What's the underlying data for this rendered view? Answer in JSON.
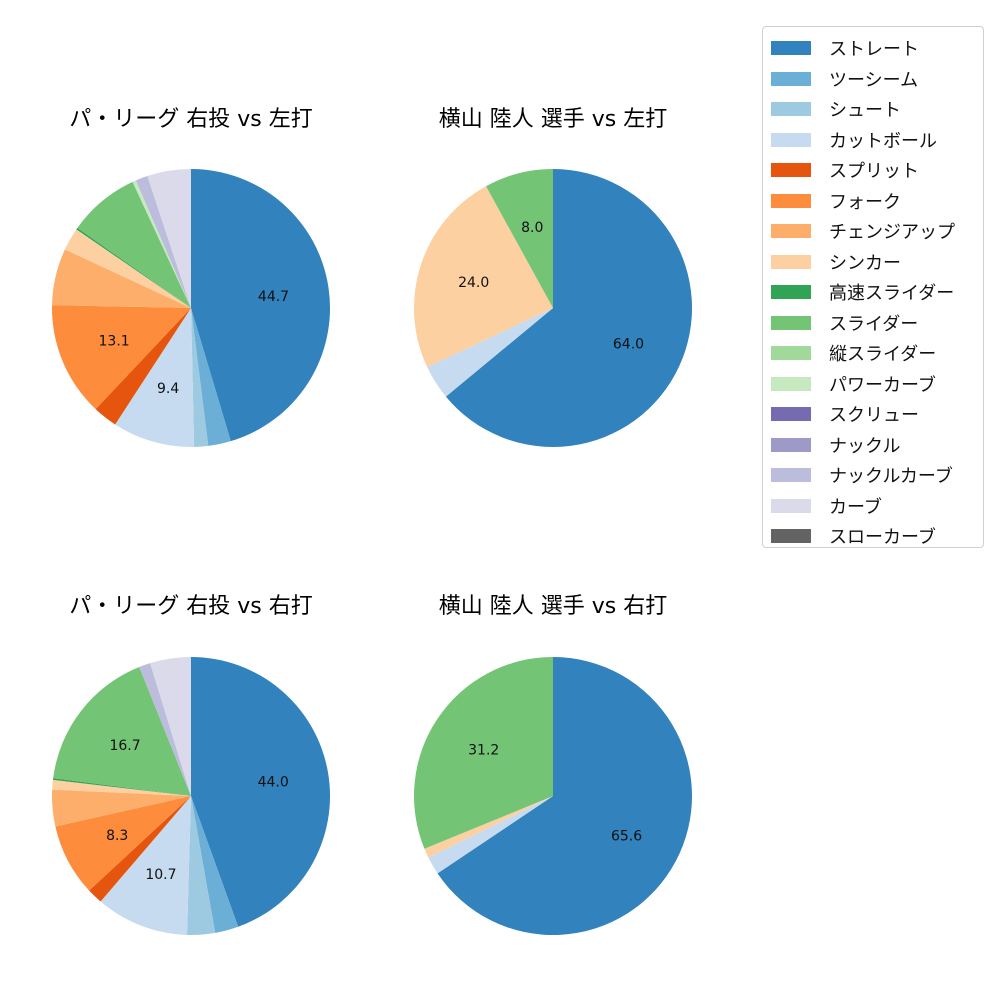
{
  "legend": {
    "items": [
      {
        "label": "ストレート",
        "color": "#3182bd"
      },
      {
        "label": "ツーシーム",
        "color": "#6baed6"
      },
      {
        "label": "シュート",
        "color": "#9ecae1"
      },
      {
        "label": "カットボール",
        "color": "#c6dbef"
      },
      {
        "label": "スプリット",
        "color": "#e6550d"
      },
      {
        "label": "フォーク",
        "color": "#fd8d3c"
      },
      {
        "label": "チェンジアップ",
        "color": "#fdae6b"
      },
      {
        "label": "シンカー",
        "color": "#fdd0a2"
      },
      {
        "label": "高速スライダー",
        "color": "#31a354"
      },
      {
        "label": "スライダー",
        "color": "#74c476"
      },
      {
        "label": "縦スライダー",
        "color": "#a1d99b"
      },
      {
        "label": "パワーカーブ",
        "color": "#c7e9c0"
      },
      {
        "label": "スクリュー",
        "color": "#756bb1"
      },
      {
        "label": "ナックル",
        "color": "#9e9ac8"
      },
      {
        "label": "ナックルカーブ",
        "color": "#bcbddc"
      },
      {
        "label": "カーブ",
        "color": "#dadaeb"
      },
      {
        "label": "スローカーブ",
        "color": "#636363"
      }
    ]
  },
  "chart_data": [
    {
      "type": "pie",
      "title": "パ・リーグ 右投 vs 左打",
      "slices": [
        {
          "label": "ストレート",
          "value": 44.7,
          "shown": "44.7"
        },
        {
          "label": "ツーシーム",
          "value": 2.6
        },
        {
          "label": "シュート",
          "value": 1.6
        },
        {
          "label": "カットボール",
          "value": 9.4,
          "shown": "9.4"
        },
        {
          "label": "スプリット",
          "value": 2.8
        },
        {
          "label": "フォーク",
          "value": 13.1,
          "shown": "13.1"
        },
        {
          "label": "チェンジアップ",
          "value": 6.5
        },
        {
          "label": "シンカー",
          "value": 2.6
        },
        {
          "label": "高速スライダー",
          "value": 0.2
        },
        {
          "label": "スライダー",
          "value": 8.2
        },
        {
          "label": "パワーカーブ",
          "value": 0.4
        },
        {
          "label": "ナックルカーブ",
          "value": 1.4
        },
        {
          "label": "カーブ",
          "value": 5.0
        }
      ]
    },
    {
      "type": "pie",
      "title": "横山 陸人 選手 vs 左打",
      "slices": [
        {
          "label": "ストレート",
          "value": 64.0,
          "shown": "64.0"
        },
        {
          "label": "カットボール",
          "value": 4.0
        },
        {
          "label": "シンカー",
          "value": 24.0,
          "shown": "24.0"
        },
        {
          "label": "スライダー",
          "value": 8.0,
          "shown": "8.0"
        }
      ]
    },
    {
      "type": "pie",
      "title": "パ・リーグ 右投 vs 右打",
      "slices": [
        {
          "label": "ストレート",
          "value": 44.0,
          "shown": "44.0"
        },
        {
          "label": "ツーシーム",
          "value": 2.7
        },
        {
          "label": "シュート",
          "value": 3.2
        },
        {
          "label": "カットボール",
          "value": 10.7,
          "shown": "10.7"
        },
        {
          "label": "スプリット",
          "value": 1.8
        },
        {
          "label": "フォーク",
          "value": 8.3,
          "shown": "8.3"
        },
        {
          "label": "チェンジアップ",
          "value": 4.2
        },
        {
          "label": "シンカー",
          "value": 1.1
        },
        {
          "label": "高速スライダー",
          "value": 0.2
        },
        {
          "label": "スライダー",
          "value": 16.7,
          "shown": "16.7"
        },
        {
          "label": "ナックルカーブ",
          "value": 1.3
        },
        {
          "label": "カーブ",
          "value": 4.7
        }
      ]
    },
    {
      "type": "pie",
      "title": "横山 陸人 選手 vs 右打",
      "slices": [
        {
          "label": "ストレート",
          "value": 65.6,
          "shown": "65.6"
        },
        {
          "label": "カットボール",
          "value": 2.1
        },
        {
          "label": "シンカー",
          "value": 1.1
        },
        {
          "label": "スライダー",
          "value": 31.2,
          "shown": "31.2"
        }
      ]
    }
  ]
}
